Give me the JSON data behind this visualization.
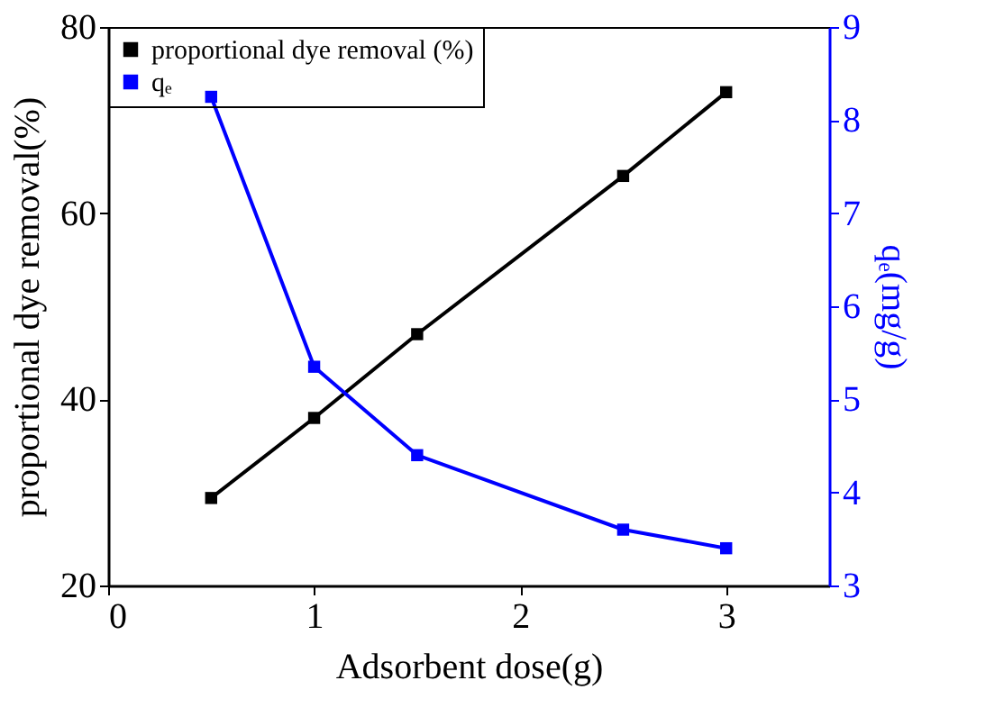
{
  "chart_data": {
    "type": "line",
    "xlabel": "Adsorbent dose(g)",
    "ylabel": "proportional dye removal(%)",
    "y2label": "qₑ(mg/g)",
    "x": [
      0.5,
      1,
      1.5,
      2.5,
      3
    ],
    "series": [
      {
        "name": "proportional dye removal (%)",
        "color": "#000000",
        "values": [
          29.4,
          38,
          47,
          64,
          73
        ]
      },
      {
        "name": "qₑ",
        "color": "#0000ff",
        "axis": "y2",
        "values": [
          8.25,
          5.35,
          4.4,
          3.6,
          3.4
        ]
      }
    ],
    "xlim": [
      0,
      3.5
    ],
    "xticks": [
      0,
      1,
      2,
      3
    ],
    "ylim": [
      20,
      80
    ],
    "yticks": [
      20,
      40,
      60,
      80
    ],
    "y2lim": [
      3,
      9
    ],
    "y2ticks": [
      3,
      4,
      5,
      6,
      7,
      8,
      9
    ],
    "grid": false,
    "legend": "top left",
    "marker": "square",
    "line_style": "solid"
  }
}
